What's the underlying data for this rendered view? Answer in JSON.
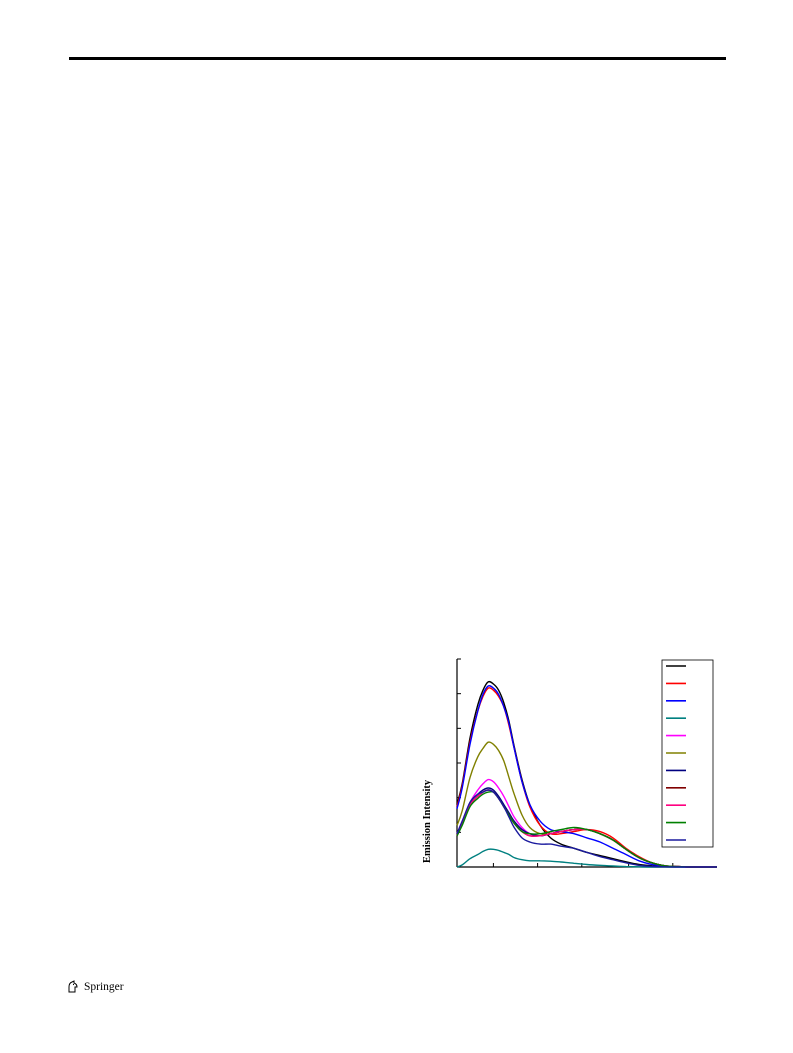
{
  "footer": {
    "publisher": "Springer",
    "logo_icon": "springer-horse-icon"
  },
  "chart_data": {
    "type": "line",
    "title": "",
    "xlabel": "",
    "ylabel": "Emission Intensity",
    "grid": false,
    "legend_position": "top-right",
    "legend_labels": [],
    "x_unit": "relative (0–1 of axis span)",
    "y_unit": "relative (0–1 of axis span)",
    "xlim": [
      0,
      1
    ],
    "ylim": [
      0,
      1
    ],
    "x": [
      0.0,
      0.02,
      0.05,
      0.08,
      0.1,
      0.12,
      0.14,
      0.16,
      0.18,
      0.2,
      0.22,
      0.25,
      0.28,
      0.32,
      0.36,
      0.4,
      0.45,
      0.5,
      0.55,
      0.6,
      0.65,
      0.7,
      0.75,
      0.8,
      0.85,
      0.9,
      1.0
    ],
    "series": [
      {
        "color": "#000000",
        "values": [
          0.3,
          0.4,
          0.62,
          0.78,
          0.85,
          0.89,
          0.88,
          0.85,
          0.79,
          0.7,
          0.58,
          0.42,
          0.3,
          0.2,
          0.14,
          0.11,
          0.09,
          0.07,
          0.055,
          0.04,
          0.025,
          0.012,
          0.006,
          0.003,
          0.001,
          0.0,
          0.0
        ]
      },
      {
        "color": "#ff0000",
        "values": [
          0.29,
          0.39,
          0.6,
          0.75,
          0.82,
          0.86,
          0.85,
          0.82,
          0.77,
          0.68,
          0.57,
          0.41,
          0.29,
          0.2,
          0.16,
          0.16,
          0.17,
          0.18,
          0.17,
          0.14,
          0.09,
          0.05,
          0.02,
          0.006,
          0.002,
          0.0,
          0.0
        ]
      },
      {
        "color": "#0000ff",
        "values": [
          0.28,
          0.38,
          0.59,
          0.75,
          0.83,
          0.87,
          0.86,
          0.83,
          0.77,
          0.69,
          0.57,
          0.41,
          0.3,
          0.22,
          0.18,
          0.17,
          0.16,
          0.14,
          0.12,
          0.09,
          0.06,
          0.03,
          0.012,
          0.004,
          0.001,
          0.0,
          0.0
        ]
      },
      {
        "color": "#008080",
        "values": [
          0.0,
          0.01,
          0.04,
          0.06,
          0.075,
          0.085,
          0.085,
          0.08,
          0.07,
          0.06,
          0.045,
          0.035,
          0.03,
          0.03,
          0.028,
          0.024,
          0.018,
          0.012,
          0.008,
          0.005,
          0.002,
          0.001,
          0.0,
          0.0,
          0.0,
          0.0,
          0.0
        ]
      },
      {
        "color": "#ff00ff",
        "values": [
          0.16,
          0.22,
          0.31,
          0.37,
          0.4,
          0.42,
          0.41,
          0.38,
          0.34,
          0.29,
          0.24,
          0.19,
          0.16,
          0.15,
          0.16,
          0.17,
          0.18,
          0.18,
          0.16,
          0.13,
          0.085,
          0.045,
          0.02,
          0.006,
          0.002,
          0.0,
          0.0
        ]
      },
      {
        "color": "#808000",
        "values": [
          0.2,
          0.27,
          0.43,
          0.53,
          0.57,
          0.6,
          0.59,
          0.56,
          0.51,
          0.43,
          0.35,
          0.25,
          0.19,
          0.16,
          0.16,
          0.17,
          0.18,
          0.18,
          0.16,
          0.13,
          0.085,
          0.045,
          0.02,
          0.006,
          0.002,
          0.0,
          0.0
        ]
      },
      {
        "color": "#000080",
        "values": [
          0.15,
          0.21,
          0.31,
          0.35,
          0.37,
          0.38,
          0.37,
          0.34,
          0.3,
          0.26,
          0.22,
          0.18,
          0.16,
          0.15,
          0.16,
          0.17,
          0.18,
          0.18,
          0.16,
          0.13,
          0.085,
          0.045,
          0.02,
          0.006,
          0.002,
          0.0,
          0.0
        ]
      },
      {
        "color": "#800000",
        "values": [
          0.15,
          0.21,
          0.3,
          0.34,
          0.36,
          0.37,
          0.36,
          0.33,
          0.29,
          0.25,
          0.21,
          0.17,
          0.15,
          0.15,
          0.16,
          0.17,
          0.18,
          0.18,
          0.16,
          0.13,
          0.085,
          0.045,
          0.02,
          0.006,
          0.002,
          0.0,
          0.0
        ]
      },
      {
        "color": "#ff0080",
        "values": [
          0.15,
          0.21,
          0.3,
          0.34,
          0.36,
          0.37,
          0.36,
          0.33,
          0.29,
          0.25,
          0.21,
          0.17,
          0.15,
          0.15,
          0.16,
          0.17,
          0.18,
          0.18,
          0.16,
          0.13,
          0.085,
          0.045,
          0.02,
          0.006,
          0.002,
          0.0,
          0.0
        ]
      },
      {
        "color": "#008000",
        "values": [
          0.15,
          0.2,
          0.29,
          0.33,
          0.35,
          0.36,
          0.36,
          0.33,
          0.29,
          0.25,
          0.21,
          0.17,
          0.16,
          0.16,
          0.17,
          0.18,
          0.19,
          0.18,
          0.16,
          0.13,
          0.085,
          0.045,
          0.02,
          0.006,
          0.002,
          0.0,
          0.0
        ]
      },
      {
        "color": "#1a1a9e",
        "values": [
          0.16,
          0.22,
          0.31,
          0.35,
          0.36,
          0.37,
          0.36,
          0.33,
          0.29,
          0.24,
          0.19,
          0.14,
          0.12,
          0.11,
          0.11,
          0.1,
          0.09,
          0.07,
          0.05,
          0.035,
          0.02,
          0.008,
          0.003,
          0.001,
          0.0,
          0.0,
          0.0
        ]
      }
    ]
  }
}
